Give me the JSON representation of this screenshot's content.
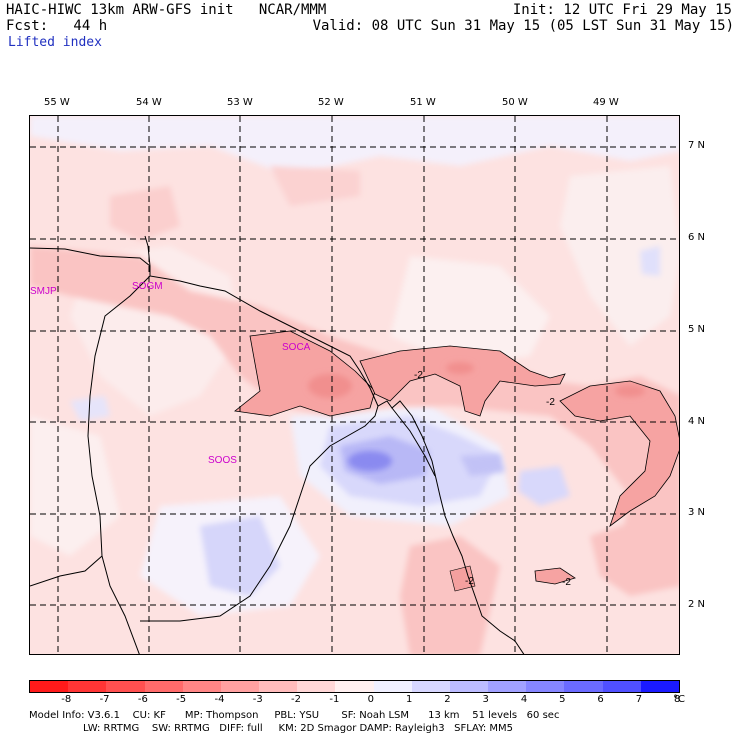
{
  "header": {
    "model_title": "HAIC-HIWC 13km ARW-GFS init   NCAR/MMM",
    "forecast": "Fcst:   44 h",
    "field": "Lifted index",
    "init": "Init: 12 UTC Fri 29 May 15",
    "valid": "Valid: 08 UTC Sun 31 May 15 (05 LST Sun 31 May 15)"
  },
  "map": {
    "lon_labels": [
      "55 W",
      "54 W",
      "53 W",
      "52 W",
      "51 W",
      "50 W",
      "49 W"
    ],
    "lat_labels": [
      "7 N",
      "6 N",
      "5 N",
      "4 N",
      "3 N",
      "2 N"
    ],
    "stations": [
      "SMJP",
      "SOGM",
      "SOCA",
      "SOOS"
    ],
    "contour_labels": [
      "-2",
      "-2",
      "-2",
      "-2"
    ]
  },
  "colorbar": {
    "labels": [
      "-8",
      "-7",
      "-6",
      "-5",
      "-4",
      "-3",
      "-2",
      "-1",
      "0",
      "1",
      "2",
      "3",
      "4",
      "5",
      "6",
      "7",
      "8"
    ],
    "unit": "°C",
    "colors": [
      "#ff1a1a",
      "#ff3535",
      "#ff5050",
      "#ff6b6b",
      "#ff8686",
      "#ffa1a1",
      "#ffbcbc",
      "#ffd7d7",
      "#fff0f0",
      "#f0f0ff",
      "#d7d7ff",
      "#bcbcff",
      "#a1a1ff",
      "#8686ff",
      "#6b6bff",
      "#5050ff",
      "#1a1aff"
    ]
  },
  "footer": {
    "line1": "Model Info: V3.6.1    CU: KF      MP: Thompson     PBL: YSU       SF: Noah LSM      13 km    51 levels   60 sec",
    "line2": "                 LW: RRTMG    SW: RRTMG   DIFF: full     KM: 2D Smagor DAMP: Rayleigh3   SFLAY: MM5"
  }
}
